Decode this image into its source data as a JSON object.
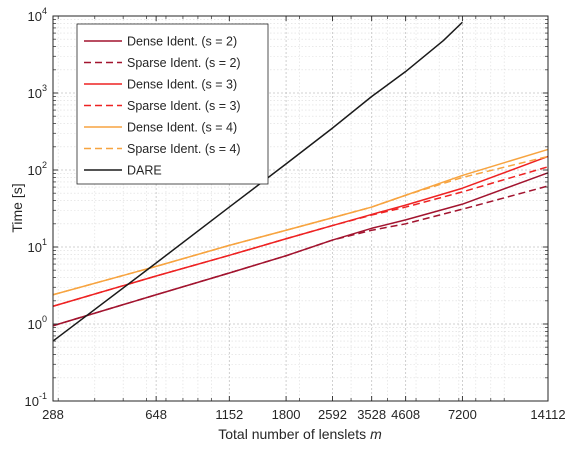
{
  "chart_data": {
    "type": "line",
    "title": "",
    "xlabel": "Total number of lenslets",
    "xlabel_var": "m",
    "ylabel": "Time [s]",
    "xscale": "log",
    "yscale": "log",
    "xlim": [
      288,
      14112
    ],
    "ylim": [
      0.1,
      10000
    ],
    "grid": true,
    "legend_position": "top-left",
    "x_ticks": [
      288,
      648,
      1152,
      1800,
      2592,
      3528,
      4608,
      7200,
      14112
    ],
    "x_tick_labels": [
      "288",
      "648",
      "1152",
      "1800",
      "2592",
      "3528",
      "4608",
      "7200",
      "14112"
    ],
    "y_ticks": [
      0.1,
      1,
      10,
      100,
      1000,
      10000
    ],
    "y_tick_labels": [
      {
        "base": "10",
        "exp": "-1"
      },
      {
        "base": "10",
        "exp": "0"
      },
      {
        "base": "10",
        "exp": "1"
      },
      {
        "base": "10",
        "exp": "2"
      },
      {
        "base": "10",
        "exp": "3"
      },
      {
        "base": "10",
        "exp": "4"
      }
    ],
    "series": [
      {
        "name": "Dense Ident.  (s = 2)",
        "color": "#a2142f",
        "dash": "solid",
        "x": [
          288,
          648,
          1152,
          1800,
          2592,
          3528,
          4608,
          7200,
          14112
        ],
        "y": [
          0.95,
          2.4,
          4.6,
          7.7,
          12.3,
          17.5,
          22.5,
          36,
          92
        ]
      },
      {
        "name": "Sparse Ident.  (s = 2)",
        "color": "#a2142f",
        "dash": "dashed",
        "x": [
          288,
          648,
          1152,
          1800,
          2592,
          3528,
          4608,
          7200,
          14112
        ],
        "y": [
          0.95,
          2.4,
          4.6,
          7.7,
          12.3,
          16.5,
          20,
          31,
          62
        ]
      },
      {
        "name": "Dense Ident.  (s = 3)",
        "color": "#ee2222",
        "dash": "solid",
        "x": [
          288,
          648,
          1152,
          1800,
          2592,
          3528,
          4608,
          7200,
          14112
        ],
        "y": [
          1.7,
          4.2,
          7.8,
          12.8,
          19,
          26.5,
          35,
          58,
          150
        ]
      },
      {
        "name": "Sparse Ident.  (s = 3)",
        "color": "#ee2222",
        "dash": "dashed",
        "x": [
          288,
          648,
          1152,
          1800,
          2592,
          3528,
          4608,
          7200,
          14112
        ],
        "y": [
          1.7,
          4.2,
          7.8,
          12.8,
          19,
          26,
          33,
          52,
          110
        ]
      },
      {
        "name": "Dense Ident.  (s = 4)",
        "color": "#f7a440",
        "dash": "solid",
        "x": [
          288,
          648,
          1152,
          1800,
          2592,
          3528,
          4608,
          7200,
          14112
        ],
        "y": [
          2.4,
          5.6,
          10.5,
          16.5,
          24,
          33,
          47,
          85,
          185
        ]
      },
      {
        "name": "Sparse Ident.  (s = 4)",
        "color": "#f7a440",
        "dash": "dashed",
        "x": [
          288,
          648,
          1152,
          1800,
          2592,
          3528,
          4608,
          7200,
          14112
        ],
        "y": [
          2.4,
          5.6,
          10.5,
          16.5,
          24,
          33,
          47,
          80,
          150
        ]
      },
      {
        "name": "DARE",
        "color": "#1a1a1a",
        "dash": "solid",
        "x": [
          288,
          648,
          1152,
          1800,
          2592,
          3528,
          4608,
          6200,
          7200
        ],
        "y": [
          0.6,
          6.2,
          33,
          120,
          350,
          900,
          1900,
          4800,
          8300
        ]
      }
    ]
  }
}
